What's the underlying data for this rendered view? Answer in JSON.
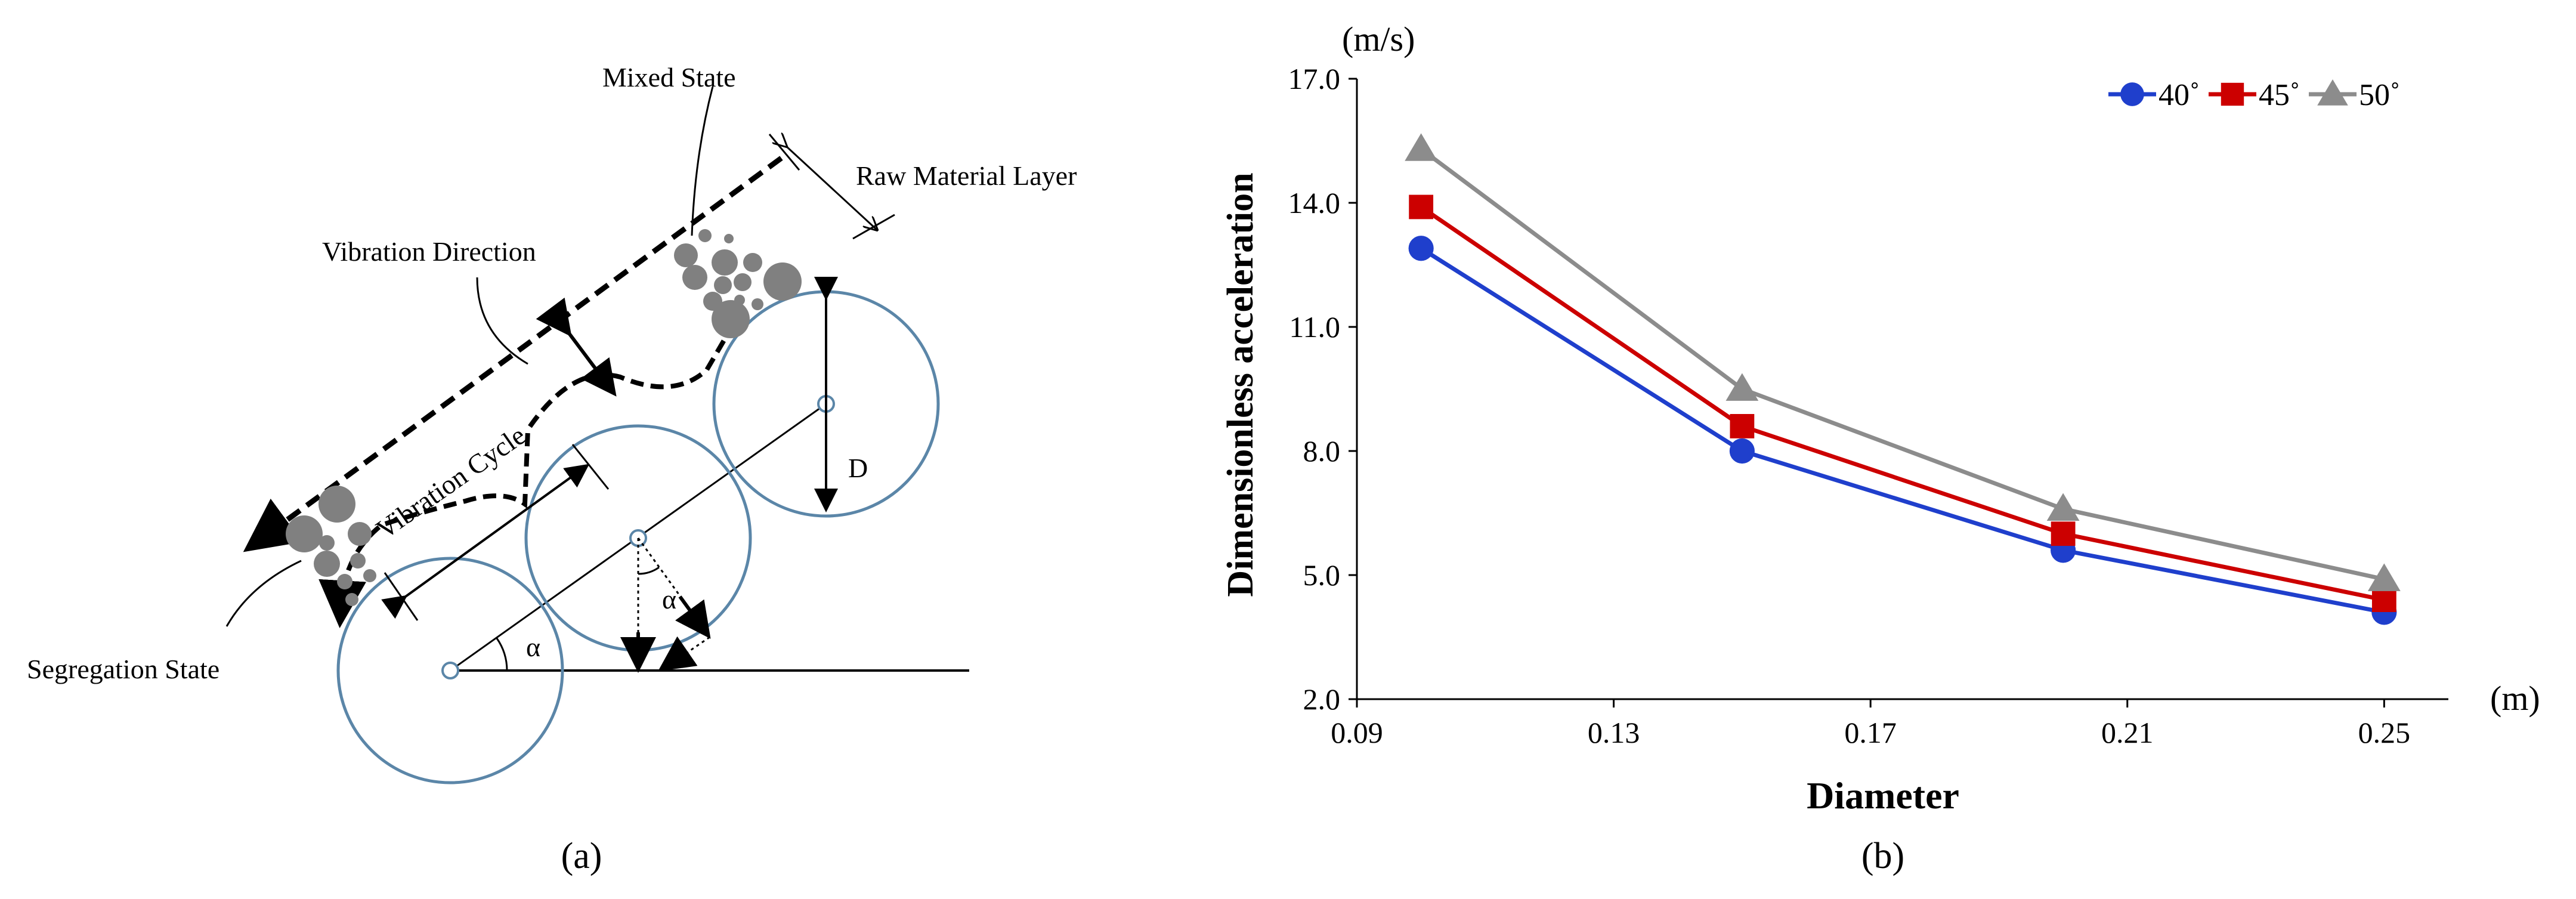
{
  "panel_a": {
    "caption": "(a)",
    "labels": {
      "mixed_state": "Mixed State",
      "raw_material_layer": "Raw Material Layer",
      "vibration_direction": "Vibration Direction",
      "vibration_cycle": "Vibration Cycle",
      "segregation_state": "Segregation State",
      "diameter_symbol": "D",
      "alpha_1": "α",
      "alpha_2": "α"
    },
    "colors": {
      "roller": "#5b86a8",
      "particle": "#808080",
      "line": "#000000"
    }
  },
  "panel_b": {
    "caption": "(b)",
    "y_unit": "(m/s)",
    "x_unit": "(m)"
  },
  "chart_data": {
    "type": "line",
    "title": "",
    "xlabel": "Diameter",
    "ylabel": "Dimensionless acceleration",
    "x": [
      0.1,
      0.15,
      0.2,
      0.25
    ],
    "xlim": [
      0.09,
      0.26
    ],
    "ylim": [
      2.0,
      17.0
    ],
    "xticks": [
      "0.09",
      "0.13",
      "0.17",
      "0.21",
      "0.25"
    ],
    "yticks": [
      "2.0",
      "5.0",
      "8.0",
      "11.0",
      "14.0",
      "17.0"
    ],
    "grid": false,
    "legend_position": "top-right",
    "series": [
      {
        "name": "40˚",
        "color": "#1f3fcc",
        "marker": "circle",
        "values": [
          12.9,
          8.0,
          5.6,
          4.1
        ]
      },
      {
        "name": "45˚",
        "color": "#cc0000",
        "marker": "square",
        "values": [
          13.9,
          8.6,
          6.0,
          4.4
        ]
      },
      {
        "name": "50˚",
        "color": "#8c8c8c",
        "marker": "triangle",
        "values": [
          15.3,
          9.5,
          6.6,
          4.9
        ]
      }
    ]
  }
}
